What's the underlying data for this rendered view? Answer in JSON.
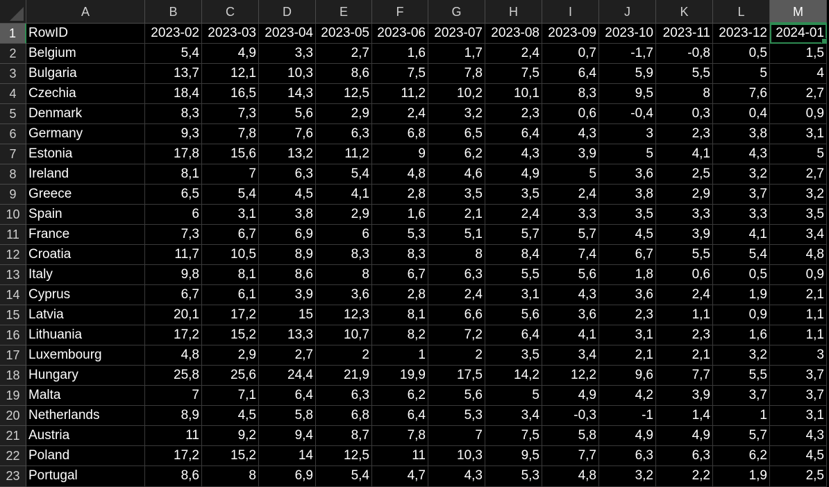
{
  "columns": [
    "A",
    "B",
    "C",
    "D",
    "E",
    "F",
    "G",
    "H",
    "I",
    "J",
    "K",
    "L",
    "M"
  ],
  "active_column": "M",
  "active_row": 1,
  "header": {
    "row_num": "1",
    "cells": [
      "RowID",
      "2023-02",
      "2023-03",
      "2023-04",
      "2023-05",
      "2023-06",
      "2023-07",
      "2023-08",
      "2023-09",
      "2023-10",
      "2023-11",
      "2023-12",
      "2024-01"
    ]
  },
  "rows": [
    {
      "num": "2",
      "cells": [
        "Belgium",
        "5,4",
        "4,9",
        "3,3",
        "2,7",
        "1,6",
        "1,7",
        "2,4",
        "0,7",
        "-1,7",
        "-0,8",
        "0,5",
        "1,5"
      ]
    },
    {
      "num": "3",
      "cells": [
        "Bulgaria",
        "13,7",
        "12,1",
        "10,3",
        "8,6",
        "7,5",
        "7,8",
        "7,5",
        "6,4",
        "5,9",
        "5,5",
        "5",
        "4"
      ]
    },
    {
      "num": "4",
      "cells": [
        "Czechia",
        "18,4",
        "16,5",
        "14,3",
        "12,5",
        "11,2",
        "10,2",
        "10,1",
        "8,3",
        "9,5",
        "8",
        "7,6",
        "2,7"
      ]
    },
    {
      "num": "5",
      "cells": [
        "Denmark",
        "8,3",
        "7,3",
        "5,6",
        "2,9",
        "2,4",
        "3,2",
        "2,3",
        "0,6",
        "-0,4",
        "0,3",
        "0,4",
        "0,9"
      ]
    },
    {
      "num": "6",
      "cells": [
        "Germany",
        "9,3",
        "7,8",
        "7,6",
        "6,3",
        "6,8",
        "6,5",
        "6,4",
        "4,3",
        "3",
        "2,3",
        "3,8",
        "3,1"
      ]
    },
    {
      "num": "7",
      "cells": [
        "Estonia",
        "17,8",
        "15,6",
        "13,2",
        "11,2",
        "9",
        "6,2",
        "4,3",
        "3,9",
        "5",
        "4,1",
        "4,3",
        "5"
      ]
    },
    {
      "num": "8",
      "cells": [
        "Ireland",
        "8,1",
        "7",
        "6,3",
        "5,4",
        "4,8",
        "4,6",
        "4,9",
        "5",
        "3,6",
        "2,5",
        "3,2",
        "2,7"
      ]
    },
    {
      "num": "9",
      "cells": [
        "Greece",
        "6,5",
        "5,4",
        "4,5",
        "4,1",
        "2,8",
        "3,5",
        "3,5",
        "2,4",
        "3,8",
        "2,9",
        "3,7",
        "3,2"
      ]
    },
    {
      "num": "10",
      "cells": [
        "Spain",
        "6",
        "3,1",
        "3,8",
        "2,9",
        "1,6",
        "2,1",
        "2,4",
        "3,3",
        "3,5",
        "3,3",
        "3,3",
        "3,5"
      ]
    },
    {
      "num": "11",
      "cells": [
        "France",
        "7,3",
        "6,7",
        "6,9",
        "6",
        "5,3",
        "5,1",
        "5,7",
        "5,7",
        "4,5",
        "3,9",
        "4,1",
        "3,4"
      ]
    },
    {
      "num": "12",
      "cells": [
        "Croatia",
        "11,7",
        "10,5",
        "8,9",
        "8,3",
        "8,3",
        "8",
        "8,4",
        "7,4",
        "6,7",
        "5,5",
        "5,4",
        "4,8"
      ]
    },
    {
      "num": "13",
      "cells": [
        "Italy",
        "9,8",
        "8,1",
        "8,6",
        "8",
        "6,7",
        "6,3",
        "5,5",
        "5,6",
        "1,8",
        "0,6",
        "0,5",
        "0,9"
      ]
    },
    {
      "num": "14",
      "cells": [
        "Cyprus",
        "6,7",
        "6,1",
        "3,9",
        "3,6",
        "2,8",
        "2,4",
        "3,1",
        "4,3",
        "3,6",
        "2,4",
        "1,9",
        "2,1"
      ]
    },
    {
      "num": "15",
      "cells": [
        "Latvia",
        "20,1",
        "17,2",
        "15",
        "12,3",
        "8,1",
        "6,6",
        "5,6",
        "3,6",
        "2,3",
        "1,1",
        "0,9",
        "1,1"
      ]
    },
    {
      "num": "16",
      "cells": [
        "Lithuania",
        "17,2",
        "15,2",
        "13,3",
        "10,7",
        "8,2",
        "7,2",
        "6,4",
        "4,1",
        "3,1",
        "2,3",
        "1,6",
        "1,1"
      ]
    },
    {
      "num": "17",
      "cells": [
        "Luxembourg",
        "4,8",
        "2,9",
        "2,7",
        "2",
        "1",
        "2",
        "3,5",
        "3,4",
        "2,1",
        "2,1",
        "3,2",
        "3"
      ]
    },
    {
      "num": "18",
      "cells": [
        "Hungary",
        "25,8",
        "25,6",
        "24,4",
        "21,9",
        "19,9",
        "17,5",
        "14,2",
        "12,2",
        "9,6",
        "7,7",
        "5,5",
        "3,7"
      ]
    },
    {
      "num": "19",
      "cells": [
        "Malta",
        "7",
        "7,1",
        "6,4",
        "6,3",
        "6,2",
        "5,6",
        "5",
        "4,9",
        "4,2",
        "3,9",
        "3,7",
        "3,7"
      ]
    },
    {
      "num": "20",
      "cells": [
        "Netherlands",
        "8,9",
        "4,5",
        "5,8",
        "6,8",
        "6,4",
        "5,3",
        "3,4",
        "-0,3",
        "-1",
        "1,4",
        "1",
        "3,1"
      ]
    },
    {
      "num": "21",
      "cells": [
        "Austria",
        "11",
        "9,2",
        "9,4",
        "8,7",
        "7,8",
        "7",
        "7,5",
        "5,8",
        "4,9",
        "4,9",
        "5,7",
        "4,3"
      ]
    },
    {
      "num": "22",
      "cells": [
        "Poland",
        "17,2",
        "15,2",
        "14",
        "12,5",
        "11",
        "10,3",
        "9,5",
        "7,7",
        "6,3",
        "6,3",
        "6,2",
        "4,5"
      ]
    },
    {
      "num": "23",
      "cells": [
        "Portugal",
        "8,6",
        "8",
        "6,9",
        "5,4",
        "4,7",
        "4,3",
        "5,3",
        "4,8",
        "3,2",
        "2,2",
        "1,9",
        "2,5"
      ]
    }
  ]
}
